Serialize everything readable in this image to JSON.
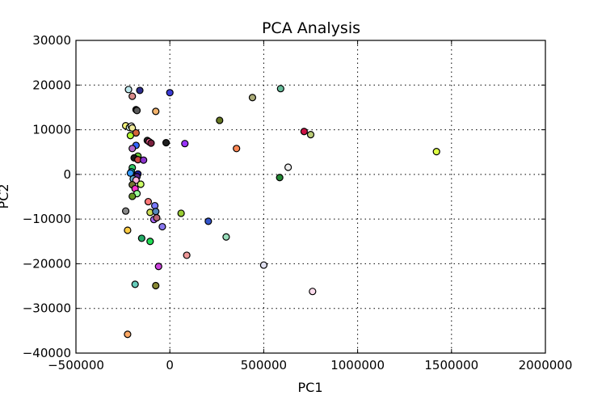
{
  "chart_data": {
    "type": "scatter",
    "title": "PCA Analysis",
    "xlabel": "PC1",
    "ylabel": "PC2",
    "xlim": [
      -500000,
      2000000
    ],
    "ylim": [
      -40000,
      30000
    ],
    "xticks": [
      -500000,
      0,
      500000,
      1000000,
      1500000,
      2000000
    ],
    "xtick_labels": [
      "−500000",
      "0",
      "500000",
      "1000000",
      "1500000",
      "2000000"
    ],
    "yticks": [
      -40000,
      -30000,
      -20000,
      -10000,
      0,
      10000,
      20000,
      30000
    ],
    "ytick_labels": [
      "−40000",
      "−30000",
      "−20000",
      "−10000",
      "0",
      "10000",
      "20000",
      "30000"
    ],
    "grid": true,
    "legend": false,
    "points": [
      {
        "x": -220000,
        "y": 19000,
        "color": "#bfe9ee"
      },
      {
        "x": -160000,
        "y": 18800,
        "color": "#2f2f8f"
      },
      {
        "x": 0,
        "y": 18300,
        "color": "#3b3bd6"
      },
      {
        "x": -200000,
        "y": 17500,
        "color": "#d88a8a"
      },
      {
        "x": -180000,
        "y": 14500,
        "color": "#1a1a1a"
      },
      {
        "x": -175000,
        "y": 14300,
        "color": "#5a5a5a"
      },
      {
        "x": -75000,
        "y": 14100,
        "color": "#f2b26b"
      },
      {
        "x": -235000,
        "y": 10900,
        "color": "#f4f27a"
      },
      {
        "x": -215000,
        "y": 10500,
        "color": "#d6f2e8"
      },
      {
        "x": -205000,
        "y": 10800,
        "color": "#ffffff"
      },
      {
        "x": -200000,
        "y": 10400,
        "color": "#f0eb9c"
      },
      {
        "x": -180000,
        "y": 9300,
        "color": "#d6663c"
      },
      {
        "x": -210000,
        "y": 8700,
        "color": "#b3ff33"
      },
      {
        "x": -120000,
        "y": 7600,
        "color": "#262626"
      },
      {
        "x": -110000,
        "y": 7300,
        "color": "#ff6699"
      },
      {
        "x": -100000,
        "y": 7000,
        "color": "#7a1f3d"
      },
      {
        "x": -20000,
        "y": 7100,
        "color": "#1f1f1f"
      },
      {
        "x": 80000,
        "y": 6900,
        "color": "#9933ff"
      },
      {
        "x": -180000,
        "y": 6500,
        "color": "#3366ff"
      },
      {
        "x": -200000,
        "y": 5800,
        "color": "#b366cc"
      },
      {
        "x": -170000,
        "y": 4100,
        "color": "#66cc33"
      },
      {
        "x": -190000,
        "y": 3700,
        "color": "#1a1a1a"
      },
      {
        "x": -170000,
        "y": 3300,
        "color": "#cc4444"
      },
      {
        "x": -140000,
        "y": 3200,
        "color": "#8a33cc"
      },
      {
        "x": -200000,
        "y": 1500,
        "color": "#33cc66"
      },
      {
        "x": -205000,
        "y": 600,
        "color": "#00cccc"
      },
      {
        "x": -210000,
        "y": 300,
        "color": "#3399ff"
      },
      {
        "x": -170000,
        "y": 100,
        "color": "#1a1a99"
      },
      {
        "x": -175000,
        "y": -500,
        "color": "#552288"
      },
      {
        "x": -195000,
        "y": -1000,
        "color": "#66aacc"
      },
      {
        "x": -180000,
        "y": -1300,
        "color": "#ffb3d9"
      },
      {
        "x": -200000,
        "y": -2300,
        "color": "#777733"
      },
      {
        "x": -155000,
        "y": -2200,
        "color": "#ccff66"
      },
      {
        "x": -185000,
        "y": -3200,
        "color": "#ff33cc"
      },
      {
        "x": -175000,
        "y": -4300,
        "color": "#99ff99"
      },
      {
        "x": -200000,
        "y": -4900,
        "color": "#669922"
      },
      {
        "x": -115000,
        "y": -6100,
        "color": "#ff7777"
      },
      {
        "x": -80000,
        "y": -7000,
        "color": "#7a7aff"
      },
      {
        "x": -235000,
        "y": -8200,
        "color": "#888888"
      },
      {
        "x": -105000,
        "y": -8500,
        "color": "#ccdd55"
      },
      {
        "x": -75000,
        "y": -8300,
        "color": "#5588bb"
      },
      {
        "x": 60000,
        "y": -8700,
        "color": "#99cc33"
      },
      {
        "x": -85000,
        "y": -10100,
        "color": "#aa66ff"
      },
      {
        "x": -70000,
        "y": -9700,
        "color": "#bb6677"
      },
      {
        "x": 205000,
        "y": -10500,
        "color": "#3355cc"
      },
      {
        "x": -40000,
        "y": -11700,
        "color": "#8877ee"
      },
      {
        "x": -225000,
        "y": -12500,
        "color": "#ffcc44"
      },
      {
        "x": -150000,
        "y": -14300,
        "color": "#22aa66"
      },
      {
        "x": -105000,
        "y": -15000,
        "color": "#22dd55"
      },
      {
        "x": 300000,
        "y": -14000,
        "color": "#99ddbb"
      },
      {
        "x": 90000,
        "y": -18100,
        "color": "#ee9999"
      },
      {
        "x": -60000,
        "y": -20600,
        "color": "#cc44dd"
      },
      {
        "x": 500000,
        "y": -20300,
        "color": "#e0e0f0"
      },
      {
        "x": -185000,
        "y": -24600,
        "color": "#66ccbb"
      },
      {
        "x": -75000,
        "y": -24900,
        "color": "#888833"
      },
      {
        "x": 760000,
        "y": -26200,
        "color": "#ffddee"
      },
      {
        "x": -225000,
        "y": -35800,
        "color": "#ffaa66"
      },
      {
        "x": 265000,
        "y": 12100,
        "color": "#667722"
      },
      {
        "x": 440000,
        "y": 17200,
        "color": "#aaaa77"
      },
      {
        "x": 590000,
        "y": 19200,
        "color": "#66bb99"
      },
      {
        "x": 355000,
        "y": 5800,
        "color": "#ff8855"
      },
      {
        "x": 715000,
        "y": 9600,
        "color": "#cc1144"
      },
      {
        "x": 750000,
        "y": 8900,
        "color": "#bbcc77"
      },
      {
        "x": 630000,
        "y": 1600,
        "color": "#eeeeee"
      },
      {
        "x": 585000,
        "y": -700,
        "color": "#228833"
      },
      {
        "x": 1420000,
        "y": 5100,
        "color": "#ddff44"
      }
    ]
  }
}
